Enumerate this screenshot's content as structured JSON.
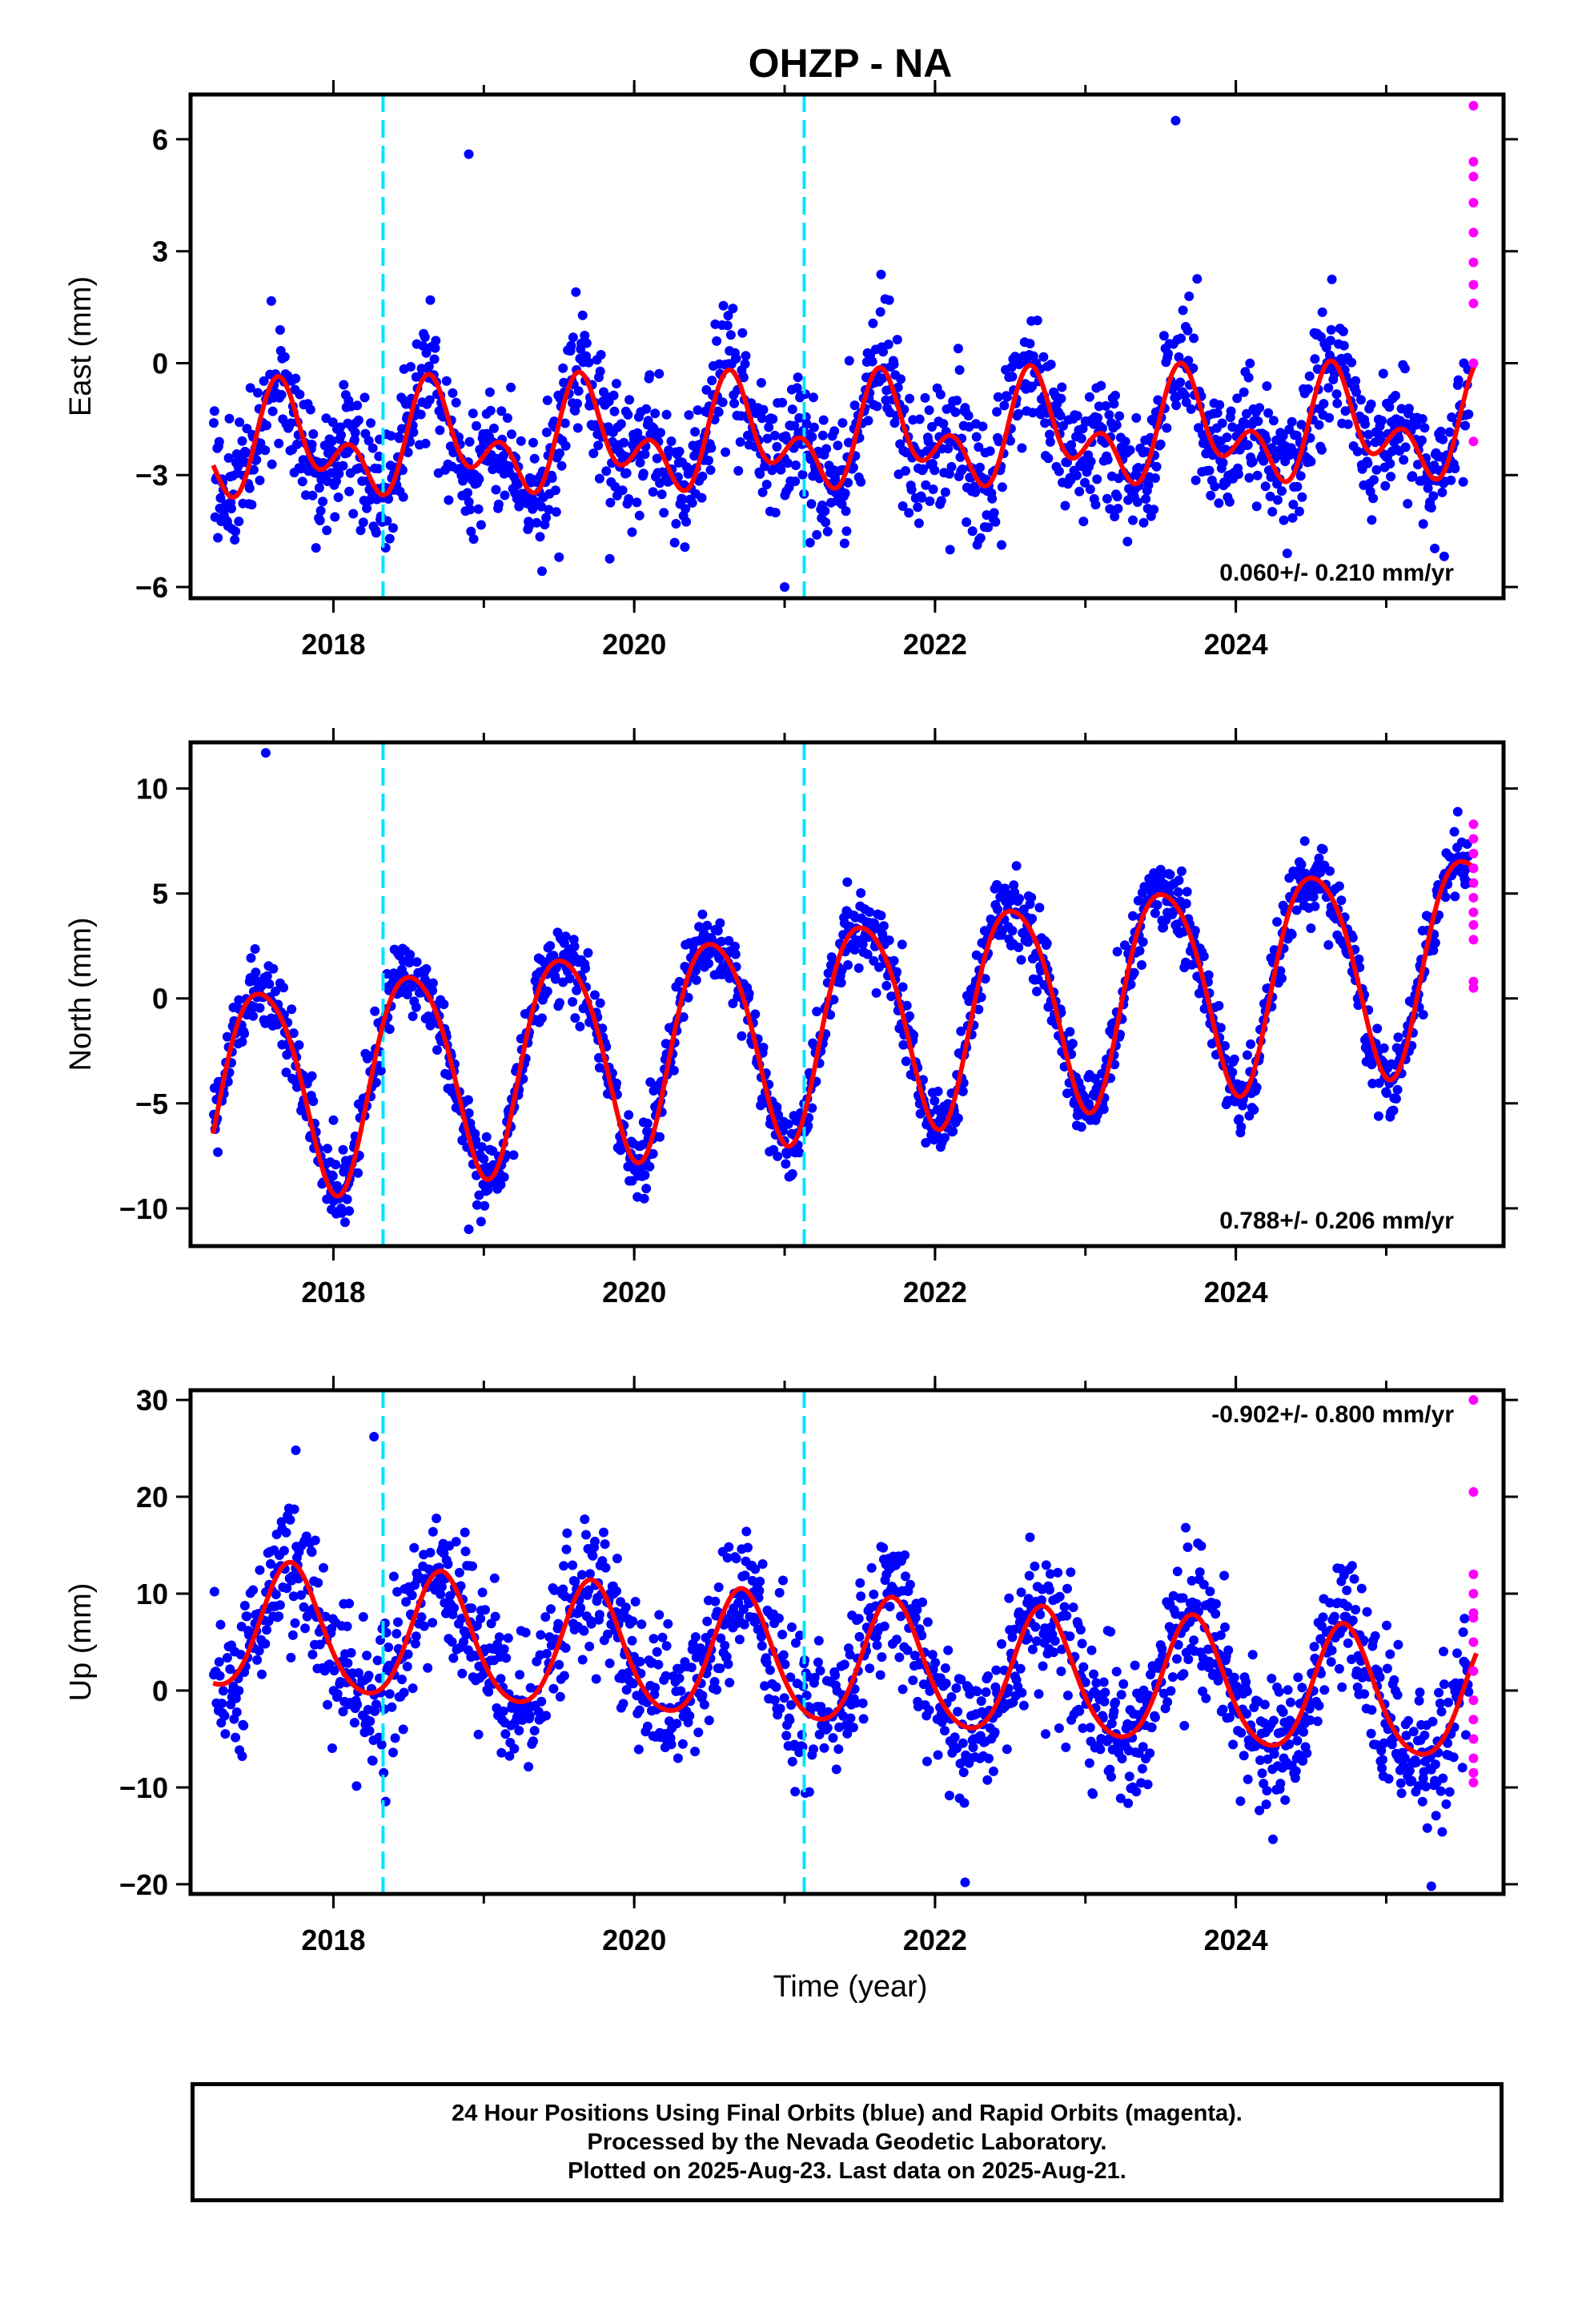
{
  "figure": {
    "title": "OHZP - NA",
    "xlabel": "Time (year)"
  },
  "footer": {
    "lines": [
      "24 Hour Positions Using Final Orbits (blue) and Rapid Orbits (magenta).",
      "Processed by the Nevada Geodetic Laboratory.",
      "Plotted on 2025-Aug-23. Last data on 2025-Aug-21."
    ]
  },
  "colors": {
    "final_orbits": "#0000ff",
    "rapid_orbits": "#ff00ff",
    "model_fit": "#ff0000",
    "equipment_change": "#00e5ff",
    "frame": "#000000"
  },
  "chart_data": [
    {
      "type": "scatter",
      "component": "east",
      "ylabel": "East (mm)",
      "rate_label": "0.060+/- 0.210 mm/yr",
      "rate_position": "bottom-right",
      "xlim": [
        2017.05,
        2025.78
      ],
      "ylim": [
        -6.3,
        7.2
      ],
      "xticks": [
        2018,
        2020,
        2022,
        2024
      ],
      "yticks": [
        -6,
        -3,
        0,
        3,
        6
      ],
      "ytick_labels": [
        "−6",
        "−3",
        "0",
        "3",
        "6"
      ],
      "steps": [
        2018.33,
        2021.13
      ],
      "fit_model": {
        "offset": -2.0,
        "trend": 0.06,
        "annual_amplitude": 1.0,
        "annual_peak": 0.68,
        "semiannual_amplitude": 0.9,
        "semiannual_peak": 0.62,
        "scatter_sigma": 0.9
      },
      "rapid": [
        6.9,
        5.4,
        5.0,
        4.3,
        3.5,
        2.7,
        2.1,
        1.6,
        0.0,
        -2.1
      ],
      "outliers": [
        [
          2018.9,
          5.6
        ],
        [
          2021.0,
          -6.0
        ],
        [
          2022.1,
          -5.0
        ],
        [
          2023.6,
          6.5
        ],
        [
          2019.5,
          -5.2
        ]
      ]
    },
    {
      "type": "scatter",
      "component": "north",
      "ylabel": "North (mm)",
      "rate_label": "0.788+/- 0.206 mm/yr",
      "rate_position": "bottom-right",
      "xlim": [
        2017.05,
        2025.78
      ],
      "ylim": [
        -11.8,
        12.2
      ],
      "xticks": [
        2018,
        2020,
        2022,
        2024
      ],
      "yticks": [
        -10,
        -5,
        0,
        5,
        10
      ],
      "ytick_labels": [
        "−10",
        "−5",
        "0",
        "5",
        "10"
      ],
      "steps": [
        2018.33,
        2021.13
      ],
      "fit_model": {
        "offset": -1.5,
        "trend": 0.79,
        "annual_amplitude": 5.0,
        "annual_peak": 0.52,
        "semiannual_amplitude": 0.6,
        "semiannual_peak": 0.3,
        "scatter_sigma": 0.9
      },
      "rapid": [
        8.3,
        7.6,
        6.9,
        6.2,
        5.5,
        4.8,
        4.1,
        3.5,
        2.8,
        0.8,
        0.5
      ],
      "outliers": [
        [
          2017.55,
          11.7
        ],
        [
          2018.9,
          -11.0
        ],
        [
          2020.9,
          -7.3
        ],
        [
          2018.0,
          -5.8
        ]
      ]
    },
    {
      "type": "scatter",
      "component": "up",
      "ylabel": "Up (mm)",
      "rate_label": "-0.902+/- 0.800 mm/yr",
      "rate_position": "top-right",
      "xlim": [
        2017.05,
        2025.78
      ],
      "ylim": [
        -21,
        31
      ],
      "xticks": [
        2018,
        2020,
        2022,
        2024
      ],
      "yticks": [
        -20,
        -10,
        0,
        10,
        20,
        30
      ],
      "ytick_labels": [
        "−20",
        "−10",
        "0",
        "10",
        "20",
        "30"
      ],
      "steps": [
        2018.33,
        2021.13
      ],
      "fit_model": {
        "offset": 3.0,
        "trend": -0.9,
        "annual_amplitude": 6.5,
        "annual_peak": 0.72,
        "semiannual_amplitude": 0.8,
        "semiannual_peak": 0.2,
        "scatter_sigma": 3.8
      },
      "rapid": [
        30.0,
        20.5,
        12.0,
        10.0,
        8.0,
        7.5,
        5.0,
        2.0,
        -1.0,
        -3.0,
        -5.0,
        -7.0,
        -8.5,
        -9.5
      ],
      "outliers": [
        [
          2018.27,
          26.2
        ],
        [
          2017.75,
          24.8
        ],
        [
          2022.2,
          -19.8
        ],
        [
          2025.3,
          -20.2
        ]
      ]
    }
  ]
}
